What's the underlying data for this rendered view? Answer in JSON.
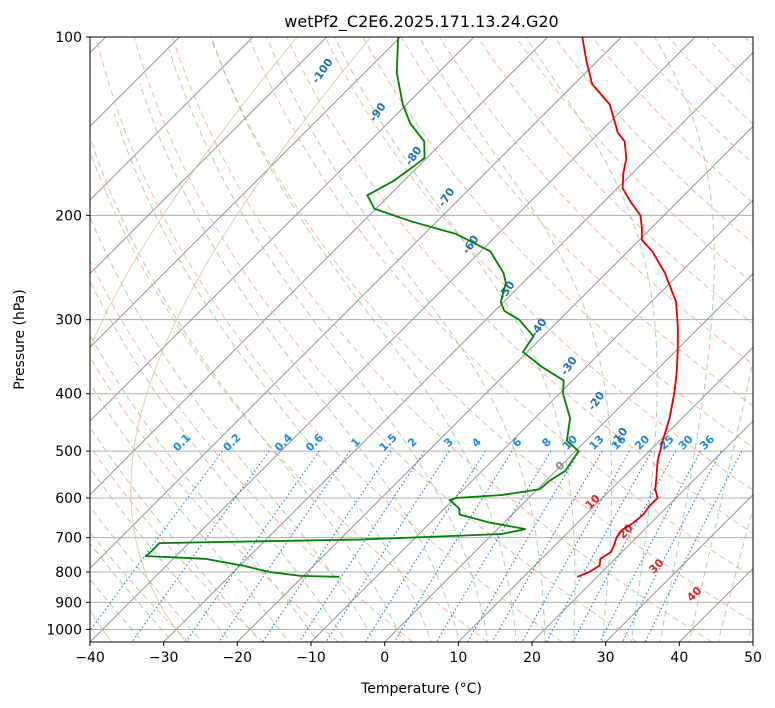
{
  "chart_data": {
    "type": "skew-t",
    "title": "wetPf2_C2E6.2025.171.13.24.G20",
    "xlabel": "Temperature (°C)",
    "ylabel": "Pressure (hPa)",
    "xlim": [
      -40,
      50
    ],
    "ylim": [
      1050,
      100
    ],
    "yscale": "log",
    "x_ticks": [
      "-40",
      "-30",
      "-20",
      "-10",
      "0",
      "10",
      "20",
      "30",
      "40",
      "50"
    ],
    "y_ticks": [
      {
        "p": 100,
        "label": "100"
      },
      {
        "p": 200,
        "label": "200"
      },
      {
        "p": 300,
        "label": "300"
      },
      {
        "p": 400,
        "label": "400"
      },
      {
        "p": 500,
        "label": "500"
      },
      {
        "p": 600,
        "label": "600"
      },
      {
        "p": 700,
        "label": "700"
      },
      {
        "p": 800,
        "label": "800"
      },
      {
        "p": 900,
        "label": "900"
      },
      {
        "p": 1000,
        "label": "1000"
      }
    ],
    "grid": true,
    "colors": {
      "temperature": "#e00000",
      "dewpoint": "#008000",
      "dry_adiabat": "#f7a888",
      "moist_adiabat": "#7fc07f",
      "mixing_ratio": "#1f77d4",
      "isotherm": "#888888",
      "dry_adiabat_label": "#1f6fb0",
      "moist_adiabat_label": "#d62728",
      "mixing_label": "#1e88e5",
      "moist_zero_label": "#888888"
    },
    "temperature_profile": [
      {
        "p": 815,
        "t": 17.3
      },
      {
        "p": 800,
        "t": 18.3
      },
      {
        "p": 780,
        "t": 18.8
      },
      {
        "p": 760,
        "t": 18.0
      },
      {
        "p": 740,
        "t": 18.5
      },
      {
        "p": 720,
        "t": 18.0
      },
      {
        "p": 700,
        "t": 17.3
      },
      {
        "p": 680,
        "t": 17.0
      },
      {
        "p": 660,
        "t": 17.6
      },
      {
        "p": 640,
        "t": 17.8
      },
      {
        "p": 620,
        "t": 17.5
      },
      {
        "p": 600,
        "t": 17.5
      },
      {
        "p": 580,
        "t": 16.0
      },
      {
        "p": 560,
        "t": 14.9
      },
      {
        "p": 520,
        "t": 12.5
      },
      {
        "p": 480,
        "t": 10.4
      },
      {
        "p": 440,
        "t": 8.3
      },
      {
        "p": 400,
        "t": 5.6
      },
      {
        "p": 370,
        "t": 3.2
      },
      {
        "p": 340,
        "t": 0.4
      },
      {
        "p": 310,
        "t": -2.8
      },
      {
        "p": 280,
        "t": -6.6
      },
      {
        "p": 250,
        "t": -12.1
      },
      {
        "p": 230,
        "t": -16.7
      },
      {
        "p": 220,
        "t": -19.7
      },
      {
        "p": 210,
        "t": -21.3
      },
      {
        "p": 200,
        "t": -23.2
      },
      {
        "p": 190,
        "t": -26.3
      },
      {
        "p": 180,
        "t": -29.3
      },
      {
        "p": 170,
        "t": -31.2
      },
      {
        "p": 160,
        "t": -32.9
      },
      {
        "p": 150,
        "t": -35.4
      },
      {
        "p": 145,
        "t": -37.5
      },
      {
        "p": 130,
        "t": -42.4
      },
      {
        "p": 120,
        "t": -47.6
      },
      {
        "p": 110,
        "t": -51.4
      },
      {
        "p": 100,
        "t": -55.3
      }
    ],
    "dewpoint_profile": [
      {
        "p": 815,
        "t": -15.0
      },
      {
        "p": 812,
        "t": -20.4
      },
      {
        "p": 800,
        "t": -25.1
      },
      {
        "p": 780,
        "t": -29.7
      },
      {
        "p": 760,
        "t": -35.7
      },
      {
        "p": 752,
        "t": -44.0
      },
      {
        "p": 740,
        "t": -44.0
      },
      {
        "p": 715,
        "t": -44.0
      },
      {
        "p": 705,
        "t": -17.0
      },
      {
        "p": 690,
        "t": 1.2
      },
      {
        "p": 677,
        "t": 3.8
      },
      {
        "p": 660,
        "t": -2.0
      },
      {
        "p": 640,
        "t": -7.1
      },
      {
        "p": 625,
        "t": -8.0
      },
      {
        "p": 605,
        "t": -10.4
      },
      {
        "p": 600,
        "t": -9.9
      },
      {
        "p": 593,
        "t": -4.0
      },
      {
        "p": 580,
        "t": 0.3
      },
      {
        "p": 560,
        "t": 0.5
      },
      {
        "p": 540,
        "t": 1.3
      },
      {
        "p": 500,
        "t": 0.4
      },
      {
        "p": 480,
        "t": -2.6
      },
      {
        "p": 440,
        "t": -5.2
      },
      {
        "p": 400,
        "t": -9.5
      },
      {
        "p": 380,
        "t": -11.2
      },
      {
        "p": 360,
        "t": -16.1
      },
      {
        "p": 340,
        "t": -20.6
      },
      {
        "p": 320,
        "t": -21.3
      },
      {
        "p": 300,
        "t": -25.5
      },
      {
        "p": 290,
        "t": -28.7
      },
      {
        "p": 280,
        "t": -30.4
      },
      {
        "p": 260,
        "t": -32.3
      },
      {
        "p": 250,
        "t": -34.0
      },
      {
        "p": 230,
        "t": -38.7
      },
      {
        "p": 215,
        "t": -45.7
      },
      {
        "p": 205,
        "t": -53.3
      },
      {
        "p": 195,
        "t": -60.2
      },
      {
        "p": 185,
        "t": -63.0
      },
      {
        "p": 175,
        "t": -61.4
      },
      {
        "p": 165,
        "t": -60.6
      },
      {
        "p": 160,
        "t": -60.3
      },
      {
        "p": 150,
        "t": -62.6
      },
      {
        "p": 140,
        "t": -66.9
      },
      {
        "p": 130,
        "t": -70.5
      },
      {
        "p": 115,
        "t": -75.6
      },
      {
        "p": 100,
        "t": -80.3
      }
    ],
    "dry_adiabat_labels": [
      {
        "text": "-100",
        "p": 115,
        "t": -85.3
      },
      {
        "text": "-90",
        "p": 135,
        "t": -72.2
      },
      {
        "text": "-80",
        "p": 160,
        "t": -61.4
      },
      {
        "text": "-70",
        "p": 188,
        "t": -51.3
      },
      {
        "text": "-60",
        "p": 226,
        "t": -41.6
      },
      {
        "text": "-50",
        "p": 270,
        "t": -30.5
      },
      {
        "text": "-40",
        "p": 312,
        "t": -21.1
      },
      {
        "text": "-30",
        "p": 362,
        "t": -11.8
      },
      {
        "text": "-20",
        "p": 415,
        "t": -3.3
      },
      {
        "text": "-10",
        "p": 477,
        "t": 4.7
      }
    ],
    "moist_adiabat_labels": [
      {
        "text": "0",
        "p": 535,
        "t": 0.6
      },
      {
        "text": "10",
        "p": 615,
        "t": 9.9
      },
      {
        "text": "20",
        "p": 690,
        "t": 18.4
      },
      {
        "text": "30",
        "p": 790,
        "t": 27.3
      },
      {
        "text": "40",
        "p": 880,
        "t": 36.2
      }
    ],
    "mixing_ratio_labels": [
      "0.1",
      "0.2",
      "0.4",
      "0.6",
      "1",
      "1.5",
      "2",
      "3",
      "4",
      "6",
      "8",
      "10",
      "13",
      "16",
      "20",
      "25",
      "30",
      "36"
    ],
    "mixing_ratio_temps_500": [
      -53.1,
      -46.3,
      -39.3,
      -35.1,
      -29.5,
      -25.1,
      -21.8,
      -16.9,
      -13.1,
      -7.6,
      -3.6,
      -0.4,
      3.2,
      6.2,
      9.4,
      12.7,
      15.3,
      18.2
    ]
  }
}
